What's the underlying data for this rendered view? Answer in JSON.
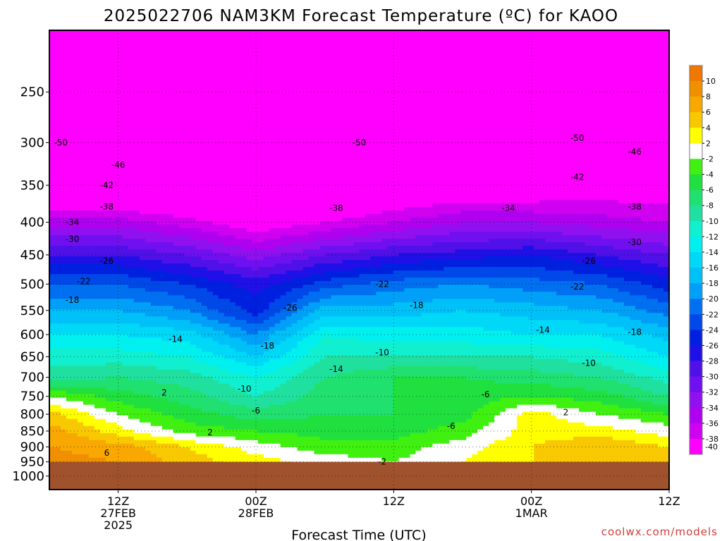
{
  "chart_data": {
    "type": "heatmap",
    "title": "2025022706 NAM3KM Forecast Temperature (ºC) for KAOO",
    "xlabel": "Forecast Time (UTC)",
    "ylabel": "",
    "credit": "coolwx.com/models",
    "y_axis": {
      "units": "hPa",
      "range": [
        200,
        1050
      ],
      "scale": "log-pressure",
      "ticks": [
        "250",
        "300",
        "350",
        "400",
        "450",
        "500",
        "550",
        "600",
        "650",
        "700",
        "750",
        "800",
        "850",
        "900",
        "950",
        "1000"
      ]
    },
    "x_axis": {
      "units": "forecast hour",
      "range": [
        0,
        54
      ],
      "ticks": [
        {
          "hour": 6,
          "line1": "12Z",
          "line2": "27FEB",
          "line3": "2025"
        },
        {
          "hour": 18,
          "line1": "00Z",
          "line2": "28FEB",
          "line3": ""
        },
        {
          "hour": 30,
          "line1": "12Z",
          "line2": "",
          "line3": ""
        },
        {
          "hour": 42,
          "line1": "00Z",
          "line2": "1MAR",
          "line3": ""
        },
        {
          "hour": 54,
          "line1": "12Z",
          "line2": "",
          "line3": ""
        }
      ]
    },
    "grid": true,
    "ground_level_hPa": 950,
    "hours": [
      0,
      6,
      12,
      18,
      24,
      30,
      36,
      42,
      48,
      54
    ],
    "levels_hPa": [
      250,
      300,
      350,
      400,
      450,
      500,
      550,
      600,
      650,
      700,
      750,
      800,
      850,
      900,
      950
    ],
    "temperature_C": [
      [
        -55,
        -55,
        -55,
        -55,
        -56,
        -55,
        -55,
        -55,
        -54,
        -54
      ],
      [
        -50,
        -50,
        -50,
        -50,
        -51,
        -50,
        -49,
        -49,
        -48,
        -47
      ],
      [
        -44,
        -44,
        -44,
        -45,
        -44,
        -42,
        -41,
        -41,
        -40,
        -40
      ],
      [
        -35,
        -35,
        -37,
        -40,
        -38,
        -36,
        -34,
        -34,
        -35,
        -36
      ],
      [
        -28,
        -28,
        -30,
        -33,
        -30,
        -28,
        -27,
        -26,
        -28,
        -30
      ],
      [
        -22,
        -22,
        -24,
        -27,
        -23,
        -21,
        -20,
        -21,
        -22,
        -25
      ],
      [
        -18,
        -18,
        -20,
        -25,
        -17,
        -17,
        -16,
        -17,
        -18,
        -21
      ],
      [
        -14,
        -14,
        -15,
        -20,
        -12,
        -13,
        -13,
        -14,
        -14,
        -17
      ],
      [
        -11,
        -11,
        -12,
        -16,
        -10,
        -10,
        -10,
        -10,
        -11,
        -14
      ],
      [
        -9,
        -8,
        -9,
        -12,
        -8,
        -6,
        -6,
        -7,
        -8,
        -11
      ],
      [
        -2,
        -5,
        -7,
        -10,
        -7,
        -6,
        -5,
        -4,
        -5,
        -8
      ],
      [
        3,
        -2,
        -5,
        -7,
        -6,
        -6,
        -5,
        1,
        -2,
        -4
      ],
      [
        5,
        1,
        -3,
        -4,
        -5,
        -5,
        -3,
        1,
        1,
        -1
      ],
      [
        6,
        5,
        2,
        -1,
        -3,
        -3,
        -1,
        2,
        4,
        2
      ],
      [
        7,
        6,
        3,
        1,
        -1,
        -2,
        0,
        2,
        4,
        3
      ]
    ],
    "colorbar": {
      "labels": [
        "10",
        "8",
        "6",
        "4",
        "2",
        "-2",
        "-4",
        "-6",
        "-8",
        "-10",
        "-12",
        "-14",
        "-16",
        "-18",
        "-20",
        "-22",
        "-24",
        "-26",
        "-28",
        "-30",
        "-32",
        "-34",
        "-36",
        "-38",
        "-40"
      ],
      "colors": [
        "#f07800",
        "#f09000",
        "#f8a800",
        "#f8c800",
        "#ffff00",
        "#ffffff",
        "#40f010",
        "#20e040",
        "#20e070",
        "#20e0a0",
        "#10f0d0",
        "#00f0f0",
        "#00d8f8",
        "#00c0f8",
        "#00a0f8",
        "#0070f0",
        "#0048e8",
        "#0020e0",
        "#2010e8",
        "#5010e8",
        "#7010f0",
        "#9010f0",
        "#b000f0",
        "#d000f0",
        "#ff00ff"
      ]
    },
    "contour_labels": [
      {
        "text": "-50",
        "hour": 1,
        "p": 300
      },
      {
        "text": "-46",
        "hour": 6,
        "p": 325
      },
      {
        "text": "-42",
        "hour": 5,
        "p": 350
      },
      {
        "text": "-38",
        "hour": 5,
        "p": 378
      },
      {
        "text": "-34",
        "hour": 2,
        "p": 400
      },
      {
        "text": "-30",
        "hour": 2,
        "p": 425
      },
      {
        "text": "-26",
        "hour": 5,
        "p": 460
      },
      {
        "text": "-22",
        "hour": 3,
        "p": 495
      },
      {
        "text": "-18",
        "hour": 2,
        "p": 530
      },
      {
        "text": "-14",
        "hour": 11,
        "p": 610
      },
      {
        "text": "-10",
        "hour": 17,
        "p": 730
      },
      {
        "text": "-6",
        "hour": 18,
        "p": 790
      },
      {
        "text": "2",
        "hour": 10,
        "p": 740
      },
      {
        "text": "2",
        "hour": 14,
        "p": 855
      },
      {
        "text": "6",
        "hour": 5,
        "p": 920
      },
      {
        "text": "-26",
        "hour": 21,
        "p": 545
      },
      {
        "text": "-18",
        "hour": 19,
        "p": 625
      },
      {
        "text": "-14",
        "hour": 25,
        "p": 680
      },
      {
        "text": "-50",
        "hour": 27,
        "p": 300
      },
      {
        "text": "-38",
        "hour": 25,
        "p": 380
      },
      {
        "text": "-22",
        "hour": 29,
        "p": 500
      },
      {
        "text": "-18",
        "hour": 32,
        "p": 540
      },
      {
        "text": "-10",
        "hour": 29,
        "p": 640
      },
      {
        "text": "-2",
        "hour": 29,
        "p": 950
      },
      {
        "text": "-6",
        "hour": 35,
        "p": 835
      },
      {
        "text": "-6",
        "hour": 38,
        "p": 745
      },
      {
        "text": "-34",
        "hour": 40,
        "p": 380
      },
      {
        "text": "-14",
        "hour": 43,
        "p": 590
      },
      {
        "text": "-10",
        "hour": 47,
        "p": 665
      },
      {
        "text": "2",
        "hour": 45,
        "p": 795
      },
      {
        "text": "-50",
        "hour": 46,
        "p": 295
      },
      {
        "text": "-42",
        "hour": 46,
        "p": 340
      },
      {
        "text": "-26",
        "hour": 47,
        "p": 460
      },
      {
        "text": "-22",
        "hour": 46,
        "p": 505
      },
      {
        "text": "-46",
        "hour": 51,
        "p": 310
      },
      {
        "text": "-38",
        "hour": 51,
        "p": 378
      },
      {
        "text": "-30",
        "hour": 51,
        "p": 430
      },
      {
        "text": "-18",
        "hour": 51,
        "p": 595
      }
    ]
  }
}
